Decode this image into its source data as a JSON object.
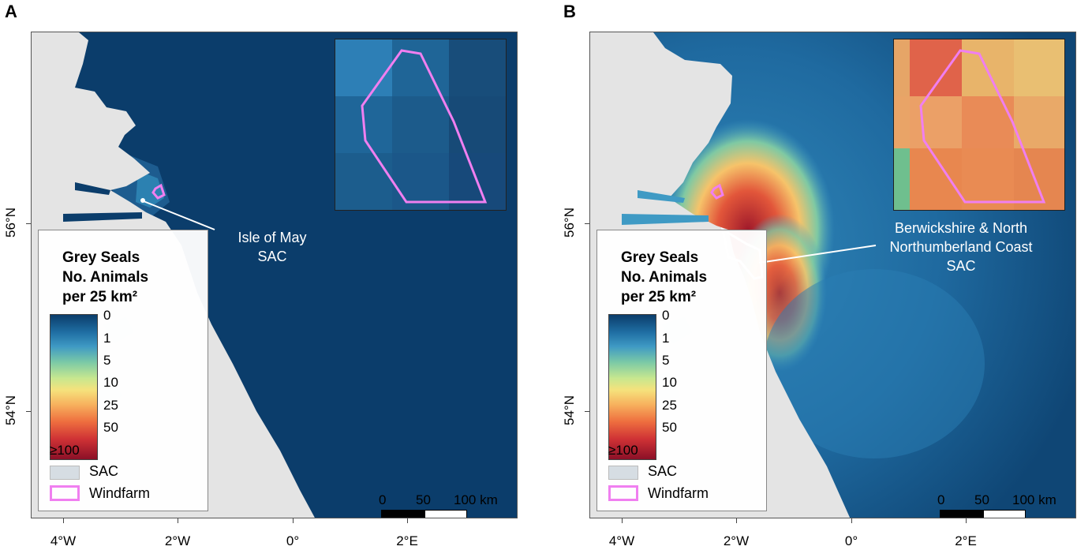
{
  "panels": [
    {
      "letter": "A",
      "x_ticks": [
        "4°W",
        "2°W",
        "0°",
        "2°E"
      ],
      "y_ticks": [
        "56°N",
        "54°N"
      ],
      "legend": {
        "title_line1": "Grey Seals",
        "title_line2": "No. Animals",
        "title_line3": "per 25 km²",
        "scale_labels": [
          "0",
          "1",
          "5",
          "10",
          "25",
          "50",
          "≥100"
        ],
        "sac_label": "SAC",
        "windfarm_label": "Windfarm"
      },
      "scalebar": {
        "labels": [
          "0",
          "50",
          "100 km"
        ]
      },
      "callout_line1": "Isle of May",
      "callout_line2": "SAC"
    },
    {
      "letter": "B",
      "x_ticks": [
        "4°W",
        "2°W",
        "0°",
        "2°E"
      ],
      "y_ticks": [
        "56°N",
        "54°N"
      ],
      "legend": {
        "title_line1": "Grey Seals",
        "title_line2": "No. Animals",
        "title_line3": "per 25 km²",
        "scale_labels": [
          "0",
          "1",
          "5",
          "10",
          "25",
          "50",
          "≥100"
        ],
        "sac_label": "SAC",
        "windfarm_label": "Windfarm"
      },
      "scalebar": {
        "labels": [
          "0",
          "50",
          "100 km"
        ]
      },
      "callout_line1": "Berwickshire & North",
      "callout_line2": "Northumberland Coast",
      "callout_line3": "SAC"
    }
  ],
  "colors": {
    "sea_zero": "#0b3d6b",
    "land": "#e4e4e4",
    "windfarm": "#f07ff0",
    "sac": "#ffffff"
  }
}
